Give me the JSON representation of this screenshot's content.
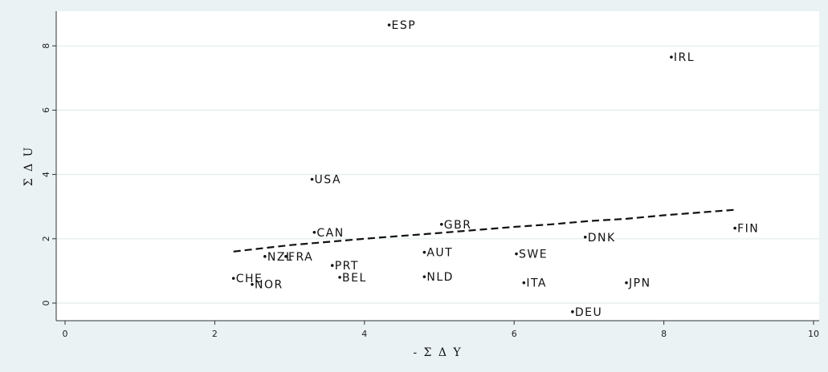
{
  "chart_data": {
    "type": "scatter",
    "xlabel": "- Σ Δ Y",
    "ylabel": "Σ Δ U",
    "xlim": [
      0,
      10
    ],
    "ylim": [
      -0.5,
      8.8
    ],
    "x_ticks": [
      "0",
      "2",
      "4",
      "6",
      "8",
      "10"
    ],
    "y_ticks": [
      "0",
      "2",
      "4",
      "6",
      "8"
    ],
    "grid": true,
    "points": [
      {
        "label": "ESP",
        "x": 4.33,
        "y": 8.65
      },
      {
        "label": "IRL",
        "x": 8.1,
        "y": 7.65
      },
      {
        "label": "USA",
        "x": 3.3,
        "y": 3.85
      },
      {
        "label": "GBR",
        "x": 5.03,
        "y": 2.45
      },
      {
        "label": "FIN",
        "x": 8.95,
        "y": 2.33
      },
      {
        "label": "CAN",
        "x": 3.33,
        "y": 2.2
      },
      {
        "label": "DNK",
        "x": 6.95,
        "y": 2.05
      },
      {
        "label": "AUT",
        "x": 4.8,
        "y": 1.58
      },
      {
        "label": "SWE",
        "x": 6.03,
        "y": 1.53
      },
      {
        "label": "NZL",
        "x": 2.67,
        "y": 1.45
      },
      {
        "label": "FRA",
        "x": 2.95,
        "y": 1.45
      },
      {
        "label": "PRT",
        "x": 3.57,
        "y": 1.17
      },
      {
        "label": "BEL",
        "x": 3.67,
        "y": 0.8
      },
      {
        "label": "NLD",
        "x": 4.8,
        "y": 0.82
      },
      {
        "label": "CHE",
        "x": 2.25,
        "y": 0.77
      },
      {
        "label": "NOR",
        "x": 2.5,
        "y": 0.58
      },
      {
        "label": "ITA",
        "x": 6.13,
        "y": 0.63
      },
      {
        "label": "JPN",
        "x": 7.5,
        "y": 0.63
      },
      {
        "label": "DEU",
        "x": 6.78,
        "y": -0.27
      }
    ],
    "fit_line": {
      "style": "dashed",
      "x": [
        2.25,
        3.0,
        4.0,
        5.0,
        6.0,
        6.5,
        7.0,
        7.5,
        8.0,
        8.5,
        8.95
      ],
      "y": [
        1.6,
        1.8,
        2.0,
        2.18,
        2.37,
        2.45,
        2.55,
        2.62,
        2.73,
        2.82,
        2.9
      ]
    }
  }
}
